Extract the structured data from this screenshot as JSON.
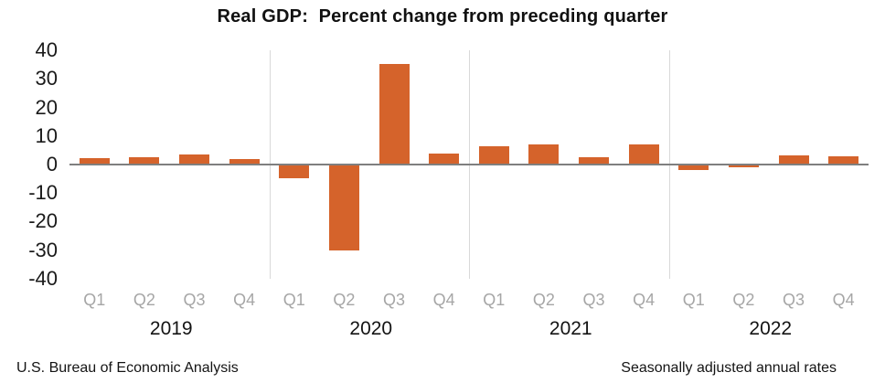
{
  "title": "Real GDP:  Percent change from preceding quarter",
  "footer": {
    "left": "U.S. Bureau of Economic Analysis",
    "right": "Seasonally adjusted annual rates"
  },
  "chart_data": {
    "type": "bar",
    "title": "Real GDP:  Percent change from preceding quarter",
    "xlabel": "",
    "ylabel": "",
    "categories": [
      "Q1",
      "Q2",
      "Q3",
      "Q4",
      "Q1",
      "Q2",
      "Q3",
      "Q4",
      "Q1",
      "Q2",
      "Q3",
      "Q4",
      "Q1",
      "Q2",
      "Q3",
      "Q4"
    ],
    "groups": [
      {
        "label": "2019",
        "values": [
          2.2,
          2.7,
          3.6,
          1.8
        ]
      },
      {
        "label": "2020",
        "values": [
          -4.6,
          -29.9,
          35.3,
          3.9
        ]
      },
      {
        "label": "2021",
        "values": [
          6.3,
          7.0,
          2.7,
          7.0
        ]
      },
      {
        "label": "2022",
        "values": [
          -1.6,
          -0.6,
          3.2,
          2.9
        ]
      }
    ],
    "ylim": [
      -40,
      40
    ],
    "yticks": [
      40,
      30,
      20,
      10,
      0,
      -10,
      -20,
      -30,
      -40
    ],
    "bar_color": "#d5632b",
    "quarter_label_color": "#a6a6a6",
    "zero_line_color": "#7f7f7f",
    "year_separator_color": "#d9d9d9",
    "grid": "vertical separators between year groups only",
    "legend": "none",
    "note": "values are percent change at seasonally adjusted annual rates"
  }
}
